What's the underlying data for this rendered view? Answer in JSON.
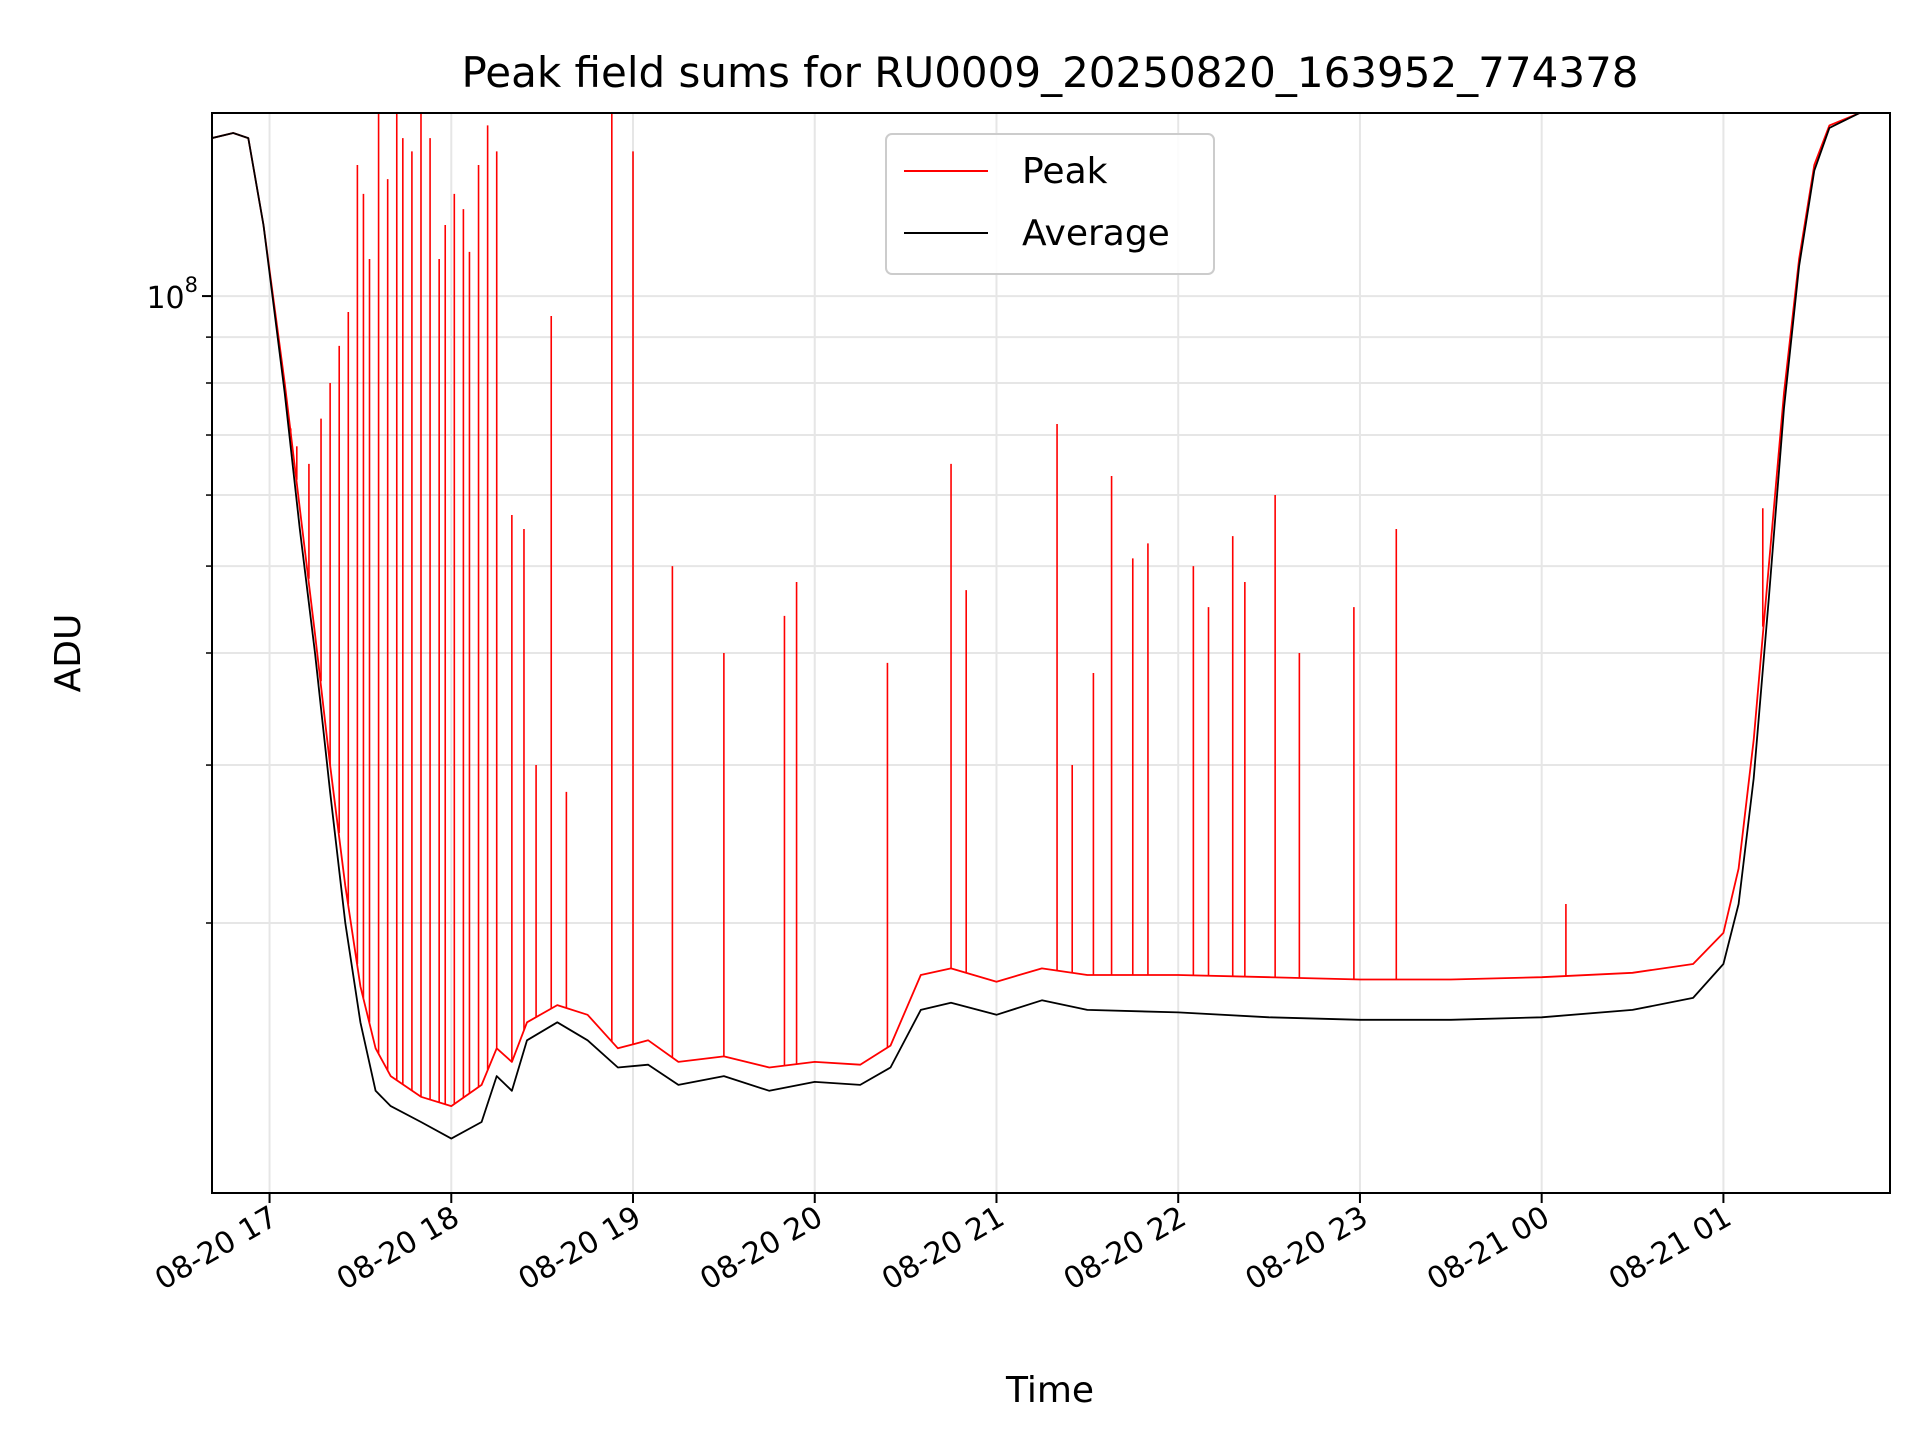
{
  "chart_data": {
    "type": "line",
    "title": "Peak field sums for RU0009_20250820_163952_774378",
    "xlabel": "Time",
    "ylabel": "ADU",
    "x_range": [
      "2025-08-20 16:41",
      "2025-08-21 01:55"
    ],
    "y_scale": "log",
    "ylim": [
      10000000,
      160000000
    ],
    "x_ticks": [
      {
        "time": "2025-08-20 17:00",
        "label": "08-20 17"
      },
      {
        "time": "2025-08-20 18:00",
        "label": "08-20 18"
      },
      {
        "time": "2025-08-20 19:00",
        "label": "08-20 19"
      },
      {
        "time": "2025-08-20 20:00",
        "label": "08-20 20"
      },
      {
        "time": "2025-08-20 21:00",
        "label": "08-20 21"
      },
      {
        "time": "2025-08-20 22:00",
        "label": "08-20 22"
      },
      {
        "time": "2025-08-20 23:00",
        "label": "08-20 23"
      },
      {
        "time": "2025-08-21 00:00",
        "label": "08-21 00"
      },
      {
        "time": "2025-08-21 01:00",
        "label": "08-21 01"
      }
    ],
    "y_major_tick": {
      "value": 100000000,
      "base": "10",
      "exp": "8"
    },
    "y_minor_ticks": [
      20000000,
      30000000,
      40000000,
      50000000,
      60000000,
      70000000,
      80000000,
      90000000
    ],
    "grid": true,
    "legend_position": "top-center",
    "series": [
      {
        "name": "Peak",
        "color": "#ff0000",
        "points": [
          [
            "2025-08-20 16:41",
            150000000
          ],
          [
            "2025-08-20 16:48",
            152000000
          ],
          [
            "2025-08-20 16:53",
            150000000
          ],
          [
            "2025-08-20 16:58",
            120000000
          ],
          [
            "2025-08-20 17:05",
            80000000
          ],
          [
            "2025-08-20 17:10",
            58000000
          ],
          [
            "2025-08-20 17:15",
            42000000
          ],
          [
            "2025-08-20 17:20",
            30000000
          ],
          [
            "2025-08-20 17:25",
            22000000
          ],
          [
            "2025-08-20 17:30",
            17000000
          ],
          [
            "2025-08-20 17:35",
            14500000
          ],
          [
            "2025-08-20 17:40",
            13500000
          ],
          [
            "2025-08-20 17:50",
            12800000
          ],
          [
            "2025-08-20 18:00",
            12500000
          ],
          [
            "2025-08-20 18:10",
            13200000
          ],
          [
            "2025-08-20 18:15",
            14500000
          ],
          [
            "2025-08-20 18:20",
            14000000
          ],
          [
            "2025-08-20 18:25",
            15500000
          ],
          [
            "2025-08-20 18:35",
            16200000
          ],
          [
            "2025-08-20 18:45",
            15800000
          ],
          [
            "2025-08-20 18:55",
            14500000
          ],
          [
            "2025-08-20 19:05",
            14800000
          ],
          [
            "2025-08-20 19:15",
            14000000
          ],
          [
            "2025-08-20 19:30",
            14200000
          ],
          [
            "2025-08-20 19:45",
            13800000
          ],
          [
            "2025-08-20 20:00",
            14000000
          ],
          [
            "2025-08-20 20:15",
            13900000
          ],
          [
            "2025-08-20 20:25",
            14600000
          ],
          [
            "2025-08-20 20:35",
            17500000
          ],
          [
            "2025-08-20 20:45",
            17800000
          ],
          [
            "2025-08-20 21:00",
            17200000
          ],
          [
            "2025-08-20 21:15",
            17800000
          ],
          [
            "2025-08-20 21:30",
            17500000
          ],
          [
            "2025-08-20 22:00",
            17500000
          ],
          [
            "2025-08-20 22:30",
            17400000
          ],
          [
            "2025-08-20 23:00",
            17300000
          ],
          [
            "2025-08-20 23:30",
            17300000
          ],
          [
            "2025-08-21 00:00",
            17400000
          ],
          [
            "2025-08-21 00:30",
            17600000
          ],
          [
            "2025-08-21 00:50",
            18000000
          ],
          [
            "2025-08-21 01:00",
            19500000
          ],
          [
            "2025-08-21 01:05",
            23000000
          ],
          [
            "2025-08-21 01:10",
            32000000
          ],
          [
            "2025-08-21 01:15",
            50000000
          ],
          [
            "2025-08-21 01:20",
            78000000
          ],
          [
            "2025-08-21 01:25",
            110000000
          ],
          [
            "2025-08-21 01:30",
            140000000
          ],
          [
            "2025-08-21 01:35",
            155000000
          ],
          [
            "2025-08-21 01:45",
            160000000
          ],
          [
            "2025-08-21 01:55",
            160000000
          ]
        ],
        "spikes": [
          [
            "2025-08-20 17:07",
            70000000
          ],
          [
            "2025-08-20 17:09",
            68000000
          ],
          [
            "2025-08-20 17:13",
            65000000
          ],
          [
            "2025-08-20 17:17",
            73000000
          ],
          [
            "2025-08-20 17:20",
            80000000
          ],
          [
            "2025-08-20 17:23",
            88000000
          ],
          [
            "2025-08-20 17:26",
            96000000
          ],
          [
            "2025-08-20 17:29",
            140000000
          ],
          [
            "2025-08-20 17:31",
            130000000
          ],
          [
            "2025-08-20 17:33",
            110000000
          ],
          [
            "2025-08-20 17:36",
            160000000
          ],
          [
            "2025-08-20 17:39",
            135000000
          ],
          [
            "2025-08-20 17:42",
            160000000
          ],
          [
            "2025-08-20 17:44",
            150000000
          ],
          [
            "2025-08-20 17:47",
            145000000
          ],
          [
            "2025-08-20 17:50",
            160000000
          ],
          [
            "2025-08-20 17:53",
            150000000
          ],
          [
            "2025-08-20 17:56",
            110000000
          ],
          [
            "2025-08-20 17:58",
            120000000
          ],
          [
            "2025-08-20 18:01",
            130000000
          ],
          [
            "2025-08-20 18:04",
            125000000
          ],
          [
            "2025-08-20 18:06",
            112000000
          ],
          [
            "2025-08-20 18:09",
            140000000
          ],
          [
            "2025-08-20 18:12",
            155000000
          ],
          [
            "2025-08-20 18:15",
            145000000
          ],
          [
            "2025-08-20 18:20",
            57000000
          ],
          [
            "2025-08-20 18:24",
            55000000
          ],
          [
            "2025-08-20 18:28",
            30000000
          ],
          [
            "2025-08-20 18:33",
            95000000
          ],
          [
            "2025-08-20 18:38",
            28000000
          ],
          [
            "2025-08-20 18:53",
            160000000
          ],
          [
            "2025-08-20 19:00",
            145000000
          ],
          [
            "2025-08-20 19:13",
            50000000
          ],
          [
            "2025-08-20 19:30",
            40000000
          ],
          [
            "2025-08-20 19:50",
            44000000
          ],
          [
            "2025-08-20 19:54",
            48000000
          ],
          [
            "2025-08-20 20:24",
            39000000
          ],
          [
            "2025-08-20 20:45",
            65000000
          ],
          [
            "2025-08-20 20:50",
            47000000
          ],
          [
            "2025-08-20 21:20",
            72000000
          ],
          [
            "2025-08-20 21:25",
            30000000
          ],
          [
            "2025-08-20 21:32",
            38000000
          ],
          [
            "2025-08-20 21:38",
            63000000
          ],
          [
            "2025-08-20 21:45",
            51000000
          ],
          [
            "2025-08-20 21:50",
            53000000
          ],
          [
            "2025-08-20 22:05",
            50000000
          ],
          [
            "2025-08-20 22:10",
            45000000
          ],
          [
            "2025-08-20 22:18",
            54000000
          ],
          [
            "2025-08-20 22:22",
            48000000
          ],
          [
            "2025-08-20 22:32",
            60000000
          ],
          [
            "2025-08-20 22:40",
            40000000
          ],
          [
            "2025-08-20 22:58",
            45000000
          ],
          [
            "2025-08-20 23:12",
            55000000
          ],
          [
            "2025-08-21 00:08",
            21000000
          ],
          [
            "2025-08-21 01:13",
            58000000
          ]
        ]
      },
      {
        "name": "Average",
        "color": "#000000",
        "points": [
          [
            "2025-08-20 16:41",
            150000000
          ],
          [
            "2025-08-20 16:48",
            152000000
          ],
          [
            "2025-08-20 16:53",
            150000000
          ],
          [
            "2025-08-20 16:58",
            120000000
          ],
          [
            "2025-08-20 17:05",
            78000000
          ],
          [
            "2025-08-20 17:10",
            55000000
          ],
          [
            "2025-08-20 17:15",
            40000000
          ],
          [
            "2025-08-20 17:20",
            28000000
          ],
          [
            "2025-08-20 17:25",
            20000000
          ],
          [
            "2025-08-20 17:30",
            15500000
          ],
          [
            "2025-08-20 17:35",
            13000000
          ],
          [
            "2025-08-20 17:40",
            12500000
          ],
          [
            "2025-08-20 17:50",
            12000000
          ],
          [
            "2025-08-20 18:00",
            11500000
          ],
          [
            "2025-08-20 18:10",
            12000000
          ],
          [
            "2025-08-20 18:15",
            13500000
          ],
          [
            "2025-08-20 18:20",
            13000000
          ],
          [
            "2025-08-20 18:25",
            14800000
          ],
          [
            "2025-08-20 18:35",
            15500000
          ],
          [
            "2025-08-20 18:45",
            14800000
          ],
          [
            "2025-08-20 18:55",
            13800000
          ],
          [
            "2025-08-20 19:05",
            13900000
          ],
          [
            "2025-08-20 19:15",
            13200000
          ],
          [
            "2025-08-20 19:30",
            13500000
          ],
          [
            "2025-08-20 19:45",
            13000000
          ],
          [
            "2025-08-20 20:00",
            13300000
          ],
          [
            "2025-08-20 20:15",
            13200000
          ],
          [
            "2025-08-20 20:25",
            13800000
          ],
          [
            "2025-08-20 20:35",
            16000000
          ],
          [
            "2025-08-20 20:45",
            16300000
          ],
          [
            "2025-08-20 21:00",
            15800000
          ],
          [
            "2025-08-20 21:15",
            16400000
          ],
          [
            "2025-08-20 21:30",
            16000000
          ],
          [
            "2025-08-20 22:00",
            15900000
          ],
          [
            "2025-08-20 22:30",
            15700000
          ],
          [
            "2025-08-20 23:00",
            15600000
          ],
          [
            "2025-08-20 23:30",
            15600000
          ],
          [
            "2025-08-21 00:00",
            15700000
          ],
          [
            "2025-08-21 00:30",
            16000000
          ],
          [
            "2025-08-21 00:50",
            16500000
          ],
          [
            "2025-08-21 01:00",
            18000000
          ],
          [
            "2025-08-21 01:05",
            21000000
          ],
          [
            "2025-08-21 01:10",
            29000000
          ],
          [
            "2025-08-21 01:15",
            46000000
          ],
          [
            "2025-08-21 01:20",
            75000000
          ],
          [
            "2025-08-21 01:25",
            108000000
          ],
          [
            "2025-08-21 01:30",
            138000000
          ],
          [
            "2025-08-21 01:35",
            154000000
          ],
          [
            "2025-08-21 01:45",
            160000000
          ],
          [
            "2025-08-21 01:55",
            160000000
          ]
        ]
      }
    ]
  }
}
